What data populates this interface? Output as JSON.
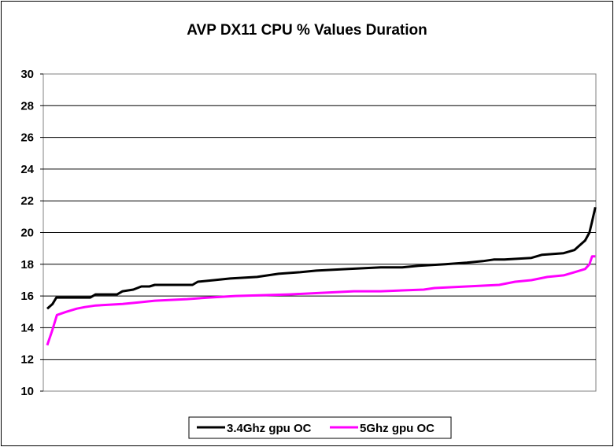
{
  "chart_data": {
    "type": "line",
    "title": "AVP DX11 CPU % Values Duration",
    "xlabel": "",
    "ylabel": "",
    "ylim": [
      10,
      30
    ],
    "yticks": [
      10,
      12,
      14,
      16,
      18,
      20,
      22,
      24,
      26,
      28,
      30
    ],
    "grid": true,
    "legend_position": "bottom-center",
    "x_range": [
      0,
      100
    ],
    "series": [
      {
        "name": "3.4Ghz gpu OC",
        "color": "#000000",
        "points": [
          [
            0,
            15.2
          ],
          [
            1,
            15.5
          ],
          [
            1.7,
            15.9
          ],
          [
            5,
            15.9
          ],
          [
            8,
            15.9
          ],
          [
            9,
            16.1
          ],
          [
            13,
            16.1
          ],
          [
            14,
            16.3
          ],
          [
            16,
            16.4
          ],
          [
            17.5,
            16.6
          ],
          [
            19,
            16.6
          ],
          [
            20,
            16.7
          ],
          [
            27,
            16.7
          ],
          [
            28,
            16.9
          ],
          [
            31,
            17.0
          ],
          [
            34,
            17.1
          ],
          [
            39,
            17.2
          ],
          [
            43,
            17.4
          ],
          [
            47,
            17.5
          ],
          [
            50,
            17.6
          ],
          [
            56,
            17.7
          ],
          [
            62,
            17.8
          ],
          [
            66,
            17.8
          ],
          [
            69,
            17.9
          ],
          [
            74,
            18.0
          ],
          [
            78,
            18.1
          ],
          [
            81,
            18.2
          ],
          [
            83,
            18.3
          ],
          [
            85,
            18.3
          ],
          [
            90,
            18.4
          ],
          [
            92,
            18.6
          ],
          [
            96,
            18.7
          ],
          [
            98,
            18.9
          ],
          [
            99,
            19.2
          ],
          [
            100,
            19.5
          ],
          [
            100.8,
            20.0
          ],
          [
            101.3,
            20.7
          ],
          [
            101.9,
            21.6
          ]
        ]
      },
      {
        "name": "5Ghz gpu OC",
        "color": "#ff00ff",
        "points": [
          [
            0,
            12.9
          ],
          [
            0.9,
            13.8
          ],
          [
            1.8,
            14.8
          ],
          [
            3.5,
            15.0
          ],
          [
            5.5,
            15.2
          ],
          [
            7,
            15.3
          ],
          [
            9,
            15.4
          ],
          [
            14,
            15.5
          ],
          [
            17,
            15.6
          ],
          [
            20,
            15.7
          ],
          [
            26,
            15.8
          ],
          [
            30,
            15.9
          ],
          [
            35,
            16.0
          ],
          [
            45,
            16.1
          ],
          [
            57,
            16.3
          ],
          [
            62,
            16.3
          ],
          [
            70,
            16.4
          ],
          [
            72,
            16.5
          ],
          [
            78,
            16.6
          ],
          [
            84,
            16.7
          ],
          [
            87,
            16.9
          ],
          [
            90,
            17.0
          ],
          [
            93,
            17.2
          ],
          [
            96,
            17.3
          ],
          [
            98,
            17.5
          ],
          [
            100,
            17.7
          ],
          [
            100.8,
            18.0
          ],
          [
            101.3,
            18.5
          ],
          [
            101.9,
            18.5
          ]
        ]
      }
    ]
  }
}
